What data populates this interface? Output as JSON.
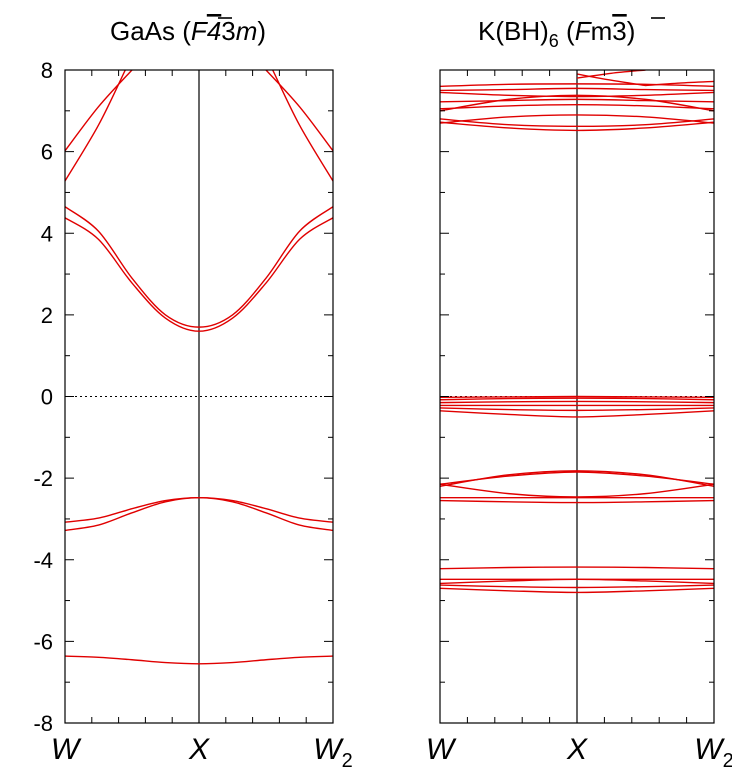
{
  "chart_data": [
    {
      "type": "line",
      "title_parts": {
        "main": "GaAs",
        "group_a": "F",
        "group_b": "4",
        "group_c": "3",
        "group_d": "m"
      },
      "ylim": [
        -8,
        8
      ],
      "yticks": [
        "-8",
        "-6",
        "-4",
        "-2",
        "0",
        "2",
        "4",
        "6",
        "8"
      ],
      "xticks": [
        {
          "pos": 0.0,
          "label": "W",
          "sub": ""
        },
        {
          "pos": 1.0,
          "label": "X",
          "sub": ""
        },
        {
          "pos": 2.0,
          "label": "W",
          "sub": "2"
        }
      ],
      "xlim": [
        0,
        2
      ],
      "fermi_level": 0,
      "line_color": "#e00000",
      "series": [
        {
          "x": [
            0,
            0.25,
            0.5,
            0.75,
            1,
            1.25,
            1.5,
            1.75,
            2
          ],
          "values": [
            -6.36,
            -6.39,
            -6.45,
            -6.52,
            -6.55,
            -6.52,
            -6.45,
            -6.39,
            -6.36
          ]
        },
        {
          "x": [
            0,
            0.25,
            0.5,
            0.75,
            1,
            1.25,
            1.5,
            1.75,
            2
          ],
          "values": [
            -3.28,
            -3.15,
            -2.85,
            -2.58,
            -2.48,
            -2.58,
            -2.85,
            -3.15,
            -3.28
          ]
        },
        {
          "x": [
            0,
            0.25,
            0.5,
            0.75,
            1,
            1.25,
            1.5,
            1.75,
            2
          ],
          "values": [
            -3.08,
            -2.98,
            -2.75,
            -2.55,
            -2.48,
            -2.55,
            -2.75,
            -2.98,
            -3.08
          ]
        },
        {
          "x": [
            0,
            0.25,
            0.5,
            0.75,
            1,
            1.25,
            1.5,
            1.75,
            2
          ],
          "values": [
            4.38,
            3.85,
            2.78,
            1.92,
            1.6,
            1.92,
            2.78,
            3.85,
            4.38
          ]
        },
        {
          "x": [
            0,
            0.25,
            0.5,
            0.75,
            1,
            1.25,
            1.5,
            1.75,
            2
          ],
          "values": [
            4.65,
            4.05,
            2.9,
            2.0,
            1.7,
            2.0,
            2.9,
            4.05,
            4.65
          ]
        },
        {
          "x": [
            0,
            0.25,
            0.45
          ],
          "values": [
            5.28,
            6.65,
            8.0
          ]
        },
        {
          "x": [
            0,
            0.25,
            0.5
          ],
          "values": [
            6.02,
            7.1,
            8.0
          ]
        },
        {
          "x": [
            1.55,
            1.75,
            2
          ],
          "values": [
            8.0,
            6.65,
            5.28
          ]
        },
        {
          "x": [
            1.5,
            1.75,
            2
          ],
          "values": [
            8.0,
            7.1,
            6.02
          ]
        }
      ]
    },
    {
      "type": "line",
      "title_parts": {
        "main": "K(BH)",
        "main_sub": "6",
        "group_a": "F",
        "group_b": "m",
        "group_c": "3"
      },
      "ylim": [
        -8,
        8
      ],
      "xticks": [
        {
          "pos": 0.0,
          "label": "W",
          "sub": ""
        },
        {
          "pos": 1.0,
          "label": "X",
          "sub": ""
        },
        {
          "pos": 2.0,
          "label": "W",
          "sub": "2"
        }
      ],
      "xlim": [
        0,
        2
      ],
      "fermi_level": 0,
      "line_color": "#e00000",
      "series": [
        {
          "x": [
            0,
            0.5,
            1,
            1.5,
            2
          ],
          "values": [
            -4.7,
            -4.76,
            -4.8,
            -4.76,
            -4.7
          ]
        },
        {
          "x": [
            0,
            0.5,
            1,
            1.5,
            2
          ],
          "values": [
            -4.62,
            -4.66,
            -4.68,
            -4.66,
            -4.62
          ]
        },
        {
          "x": [
            0,
            0.5,
            1,
            1.5,
            2
          ],
          "values": [
            -4.58,
            -4.52,
            -4.48,
            -4.52,
            -4.58
          ]
        },
        {
          "x": [
            0,
            0.5,
            1,
            1.5,
            2
          ],
          "values": [
            -4.48,
            -4.48,
            -4.48,
            -4.48,
            -4.48
          ]
        },
        {
          "x": [
            0,
            0.5,
            1,
            1.5,
            2
          ],
          "values": [
            -4.22,
            -4.19,
            -4.18,
            -4.19,
            -4.22
          ]
        },
        {
          "x": [
            0,
            0.5,
            1,
            1.5,
            2
          ],
          "values": [
            -2.55,
            -2.58,
            -2.6,
            -2.58,
            -2.55
          ]
        },
        {
          "x": [
            0,
            0.5,
            1,
            1.5,
            2
          ],
          "values": [
            -2.48,
            -2.48,
            -2.48,
            -2.48,
            -2.48
          ]
        },
        {
          "x": [
            0,
            0.5,
            1,
            1.5,
            2
          ],
          "values": [
            -2.15,
            -2.38,
            -2.46,
            -2.38,
            -2.15
          ]
        },
        {
          "x": [
            0,
            0.5,
            1,
            1.5,
            2
          ],
          "values": [
            -2.2,
            -1.92,
            -1.82,
            -1.92,
            -2.2
          ]
        },
        {
          "x": [
            0,
            0.5,
            1,
            1.5,
            2
          ],
          "values": [
            -2.15,
            -1.95,
            -1.85,
            -1.95,
            -2.15
          ]
        },
        {
          "x": [
            0,
            0.5,
            1,
            1.5,
            2
          ],
          "values": [
            -0.35,
            -0.44,
            -0.5,
            -0.44,
            -0.35
          ]
        },
        {
          "x": [
            0,
            0.5,
            1,
            1.5,
            2
          ],
          "values": [
            -0.28,
            -0.32,
            -0.34,
            -0.32,
            -0.28
          ]
        },
        {
          "x": [
            0,
            0.5,
            1,
            1.5,
            2
          ],
          "values": [
            -0.22,
            -0.22,
            -0.22,
            -0.22,
            -0.22
          ]
        },
        {
          "x": [
            0,
            0.5,
            1,
            1.5,
            2
          ],
          "values": [
            -0.15,
            -0.13,
            -0.12,
            -0.13,
            -0.15
          ]
        },
        {
          "x": [
            0,
            0.5,
            1,
            1.5,
            2
          ],
          "values": [
            -0.08,
            -0.05,
            -0.04,
            -0.05,
            -0.08
          ]
        },
        {
          "x": [
            0,
            0.5,
            1,
            1.5,
            2
          ],
          "values": [
            -0.02,
            -0.01,
            0.0,
            -0.01,
            -0.02
          ]
        },
        {
          "x": [
            0,
            0.5,
            1,
            1.5,
            2
          ],
          "values": [
            6.72,
            6.58,
            6.52,
            6.58,
            6.72
          ]
        },
        {
          "x": [
            0,
            0.5,
            1,
            1.5,
            2
          ],
          "values": [
            6.8,
            6.66,
            6.62,
            6.66,
            6.8
          ]
        },
        {
          "x": [
            0,
            0.5,
            1,
            1.5,
            2
          ],
          "values": [
            6.7,
            6.85,
            6.9,
            6.85,
            6.7
          ]
        },
        {
          "x": [
            0,
            0.5,
            1,
            1.5,
            2
          ],
          "values": [
            7.05,
            7.12,
            7.15,
            7.12,
            7.05
          ]
        },
        {
          "x": [
            0,
            0.5,
            1,
            1.5,
            2
          ],
          "values": [
            7.22,
            7.25,
            7.28,
            7.25,
            7.22
          ]
        },
        {
          "x": [
            0,
            0.5,
            1,
            1.5,
            2
          ],
          "values": [
            7.0,
            7.28,
            7.38,
            7.28,
            7.0
          ]
        },
        {
          "x": [
            0,
            0.5,
            1,
            1.5,
            2
          ],
          "values": [
            7.45,
            7.38,
            7.35,
            7.38,
            7.45
          ]
        },
        {
          "x": [
            0,
            0.5,
            1,
            1.5,
            2
          ],
          "values": [
            7.6,
            7.65,
            7.66,
            7.65,
            7.6
          ]
        },
        {
          "x": [
            0,
            0.5,
            1,
            1.5,
            2
          ],
          "values": [
            7.5,
            7.52,
            7.55,
            7.52,
            7.5
          ]
        },
        {
          "x": [
            1,
            1.25,
            1.5
          ],
          "values": [
            7.8,
            7.92,
            8.0
          ]
        },
        {
          "x": [
            1,
            1.25,
            1.5
          ],
          "values": [
            7.9,
            7.75,
            7.62
          ]
        },
        {
          "x": [
            1.5,
            1.75,
            2
          ],
          "values": [
            7.62,
            7.68,
            7.72
          ]
        }
      ]
    }
  ]
}
